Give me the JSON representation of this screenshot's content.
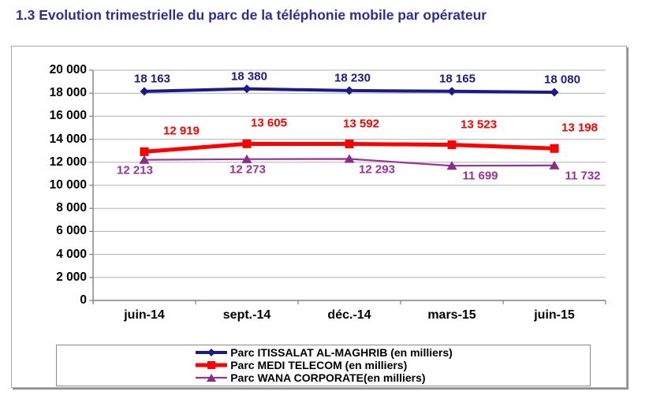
{
  "page_title": "1.3 Evolution trimestrielle du parc de la téléphonie mobile par opérateur",
  "title_color": "#2e2e96",
  "chart_data": {
    "type": "line",
    "title": "1.3 Evolution trimestrielle du parc de la téléphonie mobile par opérateur",
    "categories": [
      "juin-14",
      "sept.-14",
      "déc.-14",
      "mars-15",
      "juin-15"
    ],
    "y_axis": {
      "min": 0,
      "max": 20000,
      "step": 2000,
      "tick_labels": [
        "0",
        "2 000",
        "4 000",
        "6 000",
        "8 000",
        "10 000",
        "12 000",
        "14 000",
        "16 000",
        "18 000",
        "20 000"
      ]
    },
    "grid": true,
    "legend_position": "bottom",
    "series": [
      {
        "name": "Parc ITISSALAT AL-MAGHRIB (en milliers)",
        "color": "#1a1a88",
        "marker": "diamond",
        "values": [
          18163,
          18380,
          18230,
          18165,
          18080
        ],
        "value_labels": [
          "18 163",
          "18 380",
          "18 230",
          "18 165",
          "18 080"
        ],
        "label_side": "above"
      },
      {
        "name": "Parc MEDI TELECOM (en milliers)",
        "color": "#fe0000",
        "marker": "square",
        "values": [
          12919,
          13605,
          13592,
          13523,
          13198
        ],
        "value_labels": [
          "12 919",
          "13 605",
          "13 592",
          "13 523",
          "13 198"
        ],
        "label_side": "above"
      },
      {
        "name": "Parc WANA CORPORATE(en milliers)",
        "color": "#993399",
        "marker": "triangle",
        "values": [
          12213,
          12273,
          12293,
          11699,
          11732
        ],
        "value_labels": [
          "12 213",
          "12 273",
          "12 293",
          "11 699",
          "11 732"
        ],
        "label_side": "below"
      }
    ]
  }
}
